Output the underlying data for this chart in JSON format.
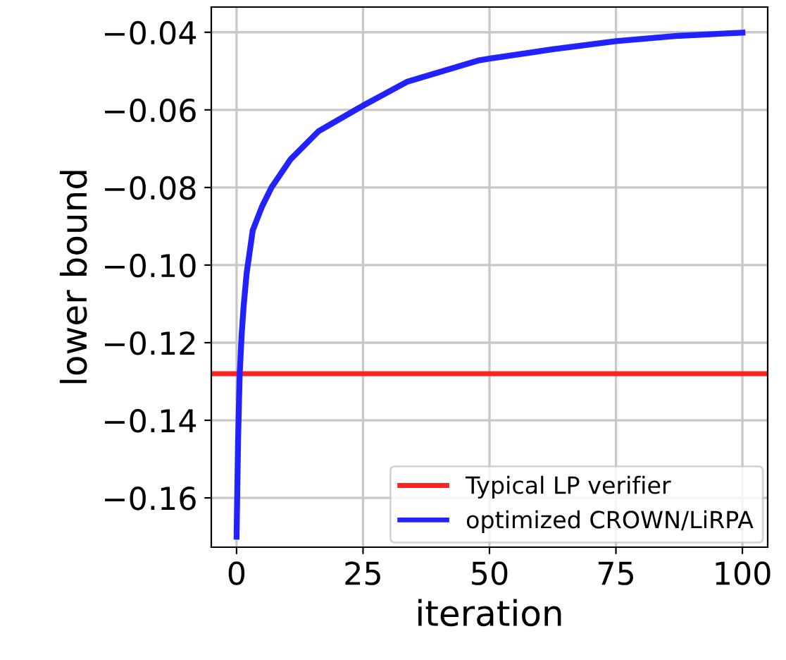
{
  "chart_data": {
    "type": "line",
    "xlabel": "iteration",
    "ylabel": "lower bound",
    "series": [
      {
        "name": "optimized CROWN/LiRPA",
        "color": "#2222ff",
        "x": [
          0,
          0.3,
          0.6,
          1,
          1.4,
          2,
          3.2,
          5,
          6.9,
          10.7,
          16.2,
          25,
          33.8,
          47.7,
          50,
          62.5,
          75,
          87.5,
          100
        ],
        "values": [
          -0.17,
          -0.145,
          -0.1287,
          -0.118,
          -0.1105,
          -0.102,
          -0.091,
          -0.085,
          -0.08,
          -0.0727,
          -0.0655,
          -0.0589,
          -0.0527,
          -0.0473,
          -0.0468,
          -0.0444,
          -0.0423,
          -0.0409,
          -0.0401
        ]
      }
    ],
    "ref_lines": [
      {
        "axis": "y",
        "value": -0.128,
        "label": "Typical LP verifier",
        "color": "#ff2222"
      }
    ],
    "xlim": [
      -5,
      105
    ],
    "xticks": [
      0,
      25,
      50,
      75,
      100
    ],
    "ylim": [
      -0.1727,
      -0.0335
    ],
    "yticks": [
      {
        "value": -0.16,
        "label": "−0.16"
      },
      {
        "value": -0.14,
        "label": "−0.14"
      },
      {
        "value": -0.12,
        "label": "−0.12"
      },
      {
        "value": -0.1,
        "label": "−0.10"
      },
      {
        "value": -0.08,
        "label": "−0.08"
      },
      {
        "value": -0.06,
        "label": "−0.06"
      },
      {
        "value": -0.04,
        "label": "−0.04"
      }
    ],
    "grid": true,
    "legend": "bottom right"
  }
}
